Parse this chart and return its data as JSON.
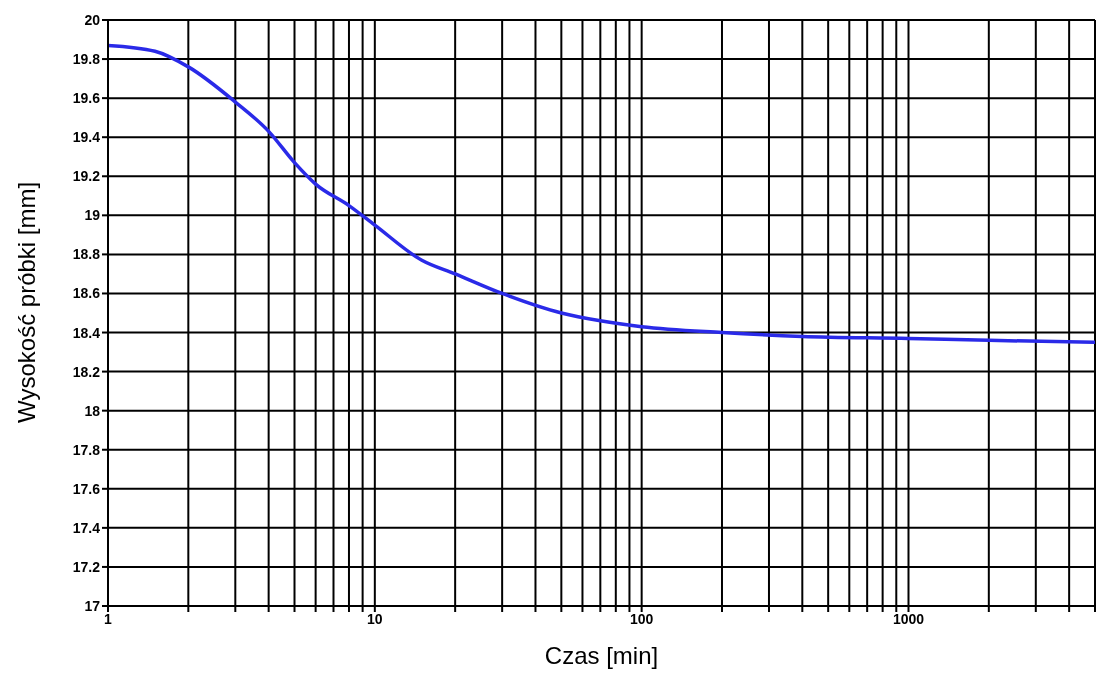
{
  "chart_data": {
    "type": "line",
    "xlabel": "Czas [min]",
    "ylabel": "Wysokość próbki [mm]",
    "log": "x",
    "grid": true,
    "marker": "none",
    "line_style": "solid",
    "x": [
      1,
      1.5,
      2,
      3,
      4,
      5,
      6,
      8,
      10,
      15,
      20,
      30,
      50,
      70,
      100,
      200,
      400,
      1000,
      2000,
      5000
    ],
    "series": [
      {
        "color": "#2a2ae8",
        "values": [
          19.87,
          19.84,
          19.76,
          19.58,
          19.43,
          19.27,
          19.16,
          19.05,
          18.95,
          18.77,
          18.7,
          18.6,
          18.5,
          18.46,
          18.43,
          18.4,
          18.38,
          18.37,
          18.36,
          18.35
        ]
      }
    ],
    "xlim": [
      1,
      5000
    ],
    "xticks": [
      1,
      {
        "value": 2,
        "label": null
      },
      {
        "value": 3,
        "label": null
      },
      {
        "value": 4,
        "label": null
      },
      {
        "value": 5,
        "label": null
      },
      {
        "value": 6,
        "label": null
      },
      {
        "value": 7,
        "label": null
      },
      {
        "value": 8,
        "label": null
      },
      {
        "value": 9,
        "label": null
      },
      10,
      {
        "value": 20,
        "label": null
      },
      {
        "value": 30,
        "label": null
      },
      {
        "value": 40,
        "label": null
      },
      {
        "value": 50,
        "label": null
      },
      {
        "value": 60,
        "label": null
      },
      {
        "value": 70,
        "label": null
      },
      {
        "value": 80,
        "label": null
      },
      {
        "value": 90,
        "label": null
      },
      100,
      {
        "value": 200,
        "label": null
      },
      {
        "value": 300,
        "label": null
      },
      {
        "value": 400,
        "label": null
      },
      {
        "value": 500,
        "label": null
      },
      {
        "value": 600,
        "label": null
      },
      {
        "value": 700,
        "label": null
      },
      {
        "value": 800,
        "label": null
      },
      {
        "value": 900,
        "label": null
      },
      1000,
      {
        "value": 2000,
        "label": null
      },
      {
        "value": 3000,
        "label": null
      },
      {
        "value": 4000,
        "label": null
      },
      {
        "value": 5000,
        "label": null
      }
    ],
    "ylim": [
      17,
      20
    ],
    "yticks": [
      17,
      17.2,
      17.4,
      17.6,
      17.8,
      18,
      18.2,
      18.4,
      18.6,
      18.8,
      19,
      19.2,
      19.4,
      19.6,
      19.8,
      20
    ]
  }
}
